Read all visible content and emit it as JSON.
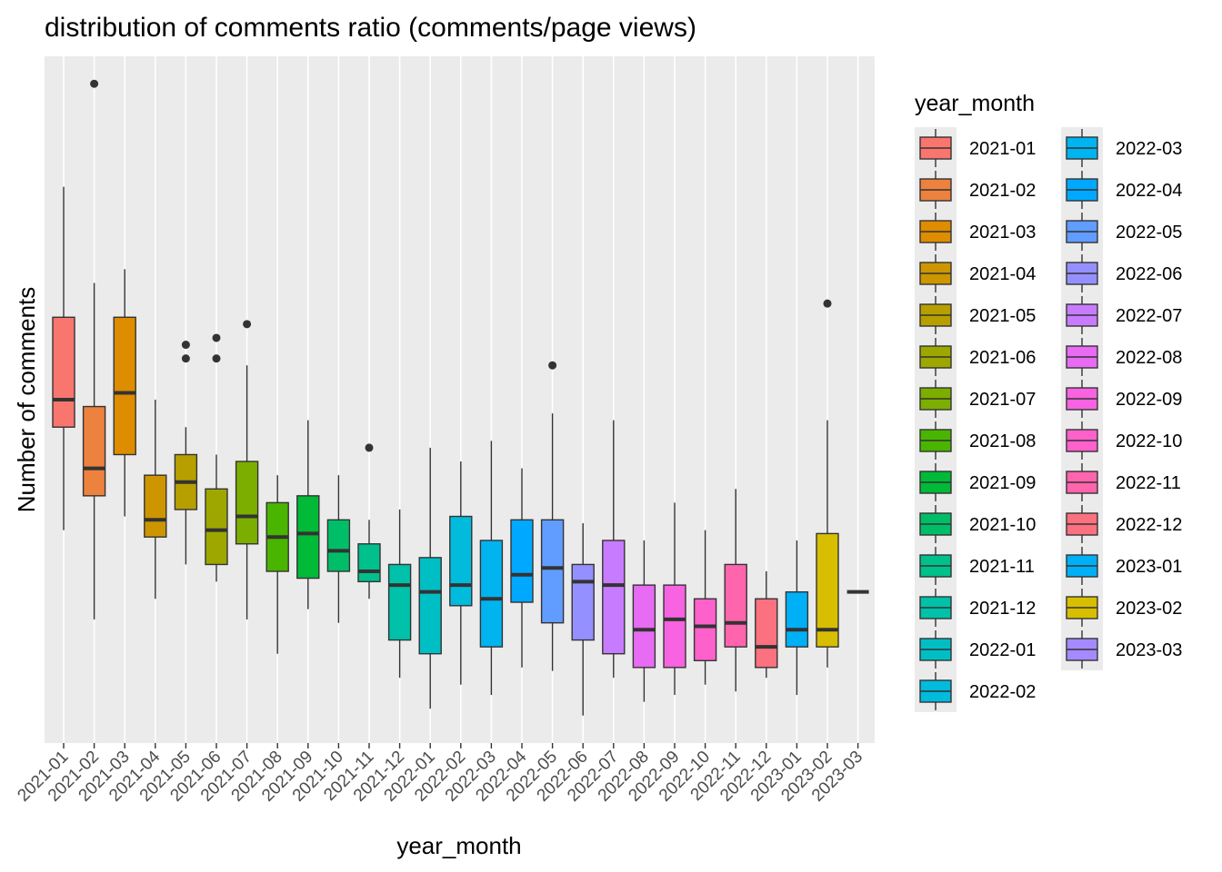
{
  "chart_data": {
    "type": "boxplot",
    "title": "distribution of comments ratio (comments/page views)",
    "xlabel": "year_month",
    "ylabel": "Number of comments",
    "y_tick_labels_shown": false,
    "ylim": [
      0,
      100
    ],
    "grid": true,
    "legend": {
      "title": "year_month",
      "placement": "right",
      "columns": 2
    },
    "categories": [
      "2021-01",
      "2021-02",
      "2021-03",
      "2021-04",
      "2021-05",
      "2021-06",
      "2021-07",
      "2021-08",
      "2021-09",
      "2021-10",
      "2021-11",
      "2021-12",
      "2022-01",
      "2022-02",
      "2022-03",
      "2022-04",
      "2022-05",
      "2022-06",
      "2022-07",
      "2022-08",
      "2022-09",
      "2022-10",
      "2022-11",
      "2022-12",
      "2023-01",
      "2023-02",
      "2023-03"
    ],
    "colors": [
      "#F8766D",
      "#ED813E",
      "#DE8C00",
      "#CD9600",
      "#B79F00",
      "#9DA700",
      "#7CAE00",
      "#49B500",
      "#00BA38",
      "#00BE67",
      "#00C08B",
      "#00C1A9",
      "#00BFC4",
      "#00BBDC",
      "#00B4F0",
      "#00A9FF",
      "#619CFF",
      "#9590FF",
      "#C77CFF",
      "#E76BF3",
      "#F763E0",
      "#FF61CC",
      "#FF65AC",
      "#FC717F",
      "#00B0F6",
      "#D8BE00",
      "#A58AFF"
    ],
    "boxes": [
      {
        "category": "2021-01",
        "whisker_low": 31,
        "q1": 46,
        "median": 50,
        "q3": 62,
        "whisker_high": 81,
        "outliers": []
      },
      {
        "category": "2021-02",
        "whisker_low": 18,
        "q1": 36,
        "median": 40,
        "q3": 49,
        "whisker_high": 67,
        "outliers": [
          96
        ]
      },
      {
        "category": "2021-03",
        "whisker_low": 33,
        "q1": 42,
        "median": 51,
        "q3": 62,
        "whisker_high": 69,
        "outliers": []
      },
      {
        "category": "2021-04",
        "whisker_low": 21,
        "q1": 30,
        "median": 32.5,
        "q3": 39,
        "whisker_high": 50,
        "outliers": []
      },
      {
        "category": "2021-05",
        "whisker_low": 26,
        "q1": 34,
        "median": 38,
        "q3": 42,
        "whisker_high": 46,
        "outliers": [
          58,
          56
        ]
      },
      {
        "category": "2021-06",
        "whisker_low": 23.5,
        "q1": 26,
        "median": 31,
        "q3": 37,
        "whisker_high": 42,
        "outliers": [
          59,
          56
        ]
      },
      {
        "category": "2021-07",
        "whisker_low": 18,
        "q1": 29,
        "median": 33,
        "q3": 41,
        "whisker_high": 55,
        "outliers": [
          61
        ]
      },
      {
        "category": "2021-08",
        "whisker_low": 13,
        "q1": 25,
        "median": 30,
        "q3": 35,
        "whisker_high": 39,
        "outliers": []
      },
      {
        "category": "2021-09",
        "whisker_low": 19.5,
        "q1": 24,
        "median": 30.5,
        "q3": 36,
        "whisker_high": 47,
        "outliers": []
      },
      {
        "category": "2021-10",
        "whisker_low": 17.5,
        "q1": 25,
        "median": 28,
        "q3": 32.5,
        "whisker_high": 39,
        "outliers": []
      },
      {
        "category": "2021-11",
        "whisker_low": 21,
        "q1": 23.5,
        "median": 25,
        "q3": 29,
        "whisker_high": 32.5,
        "outliers": [
          43
        ]
      },
      {
        "category": "2021-12",
        "whisker_low": 9.5,
        "q1": 15,
        "median": 23,
        "q3": 26,
        "whisker_high": 34,
        "outliers": []
      },
      {
        "category": "2022-01",
        "whisker_low": 5,
        "q1": 13,
        "median": 22,
        "q3": 27,
        "whisker_high": 43,
        "outliers": []
      },
      {
        "category": "2022-02",
        "whisker_low": 8.5,
        "q1": 20,
        "median": 23,
        "q3": 33,
        "whisker_high": 41,
        "outliers": []
      },
      {
        "category": "2022-03",
        "whisker_low": 7,
        "q1": 14,
        "median": 21,
        "q3": 29.5,
        "whisker_high": 44,
        "outliers": []
      },
      {
        "category": "2022-04",
        "whisker_low": 11,
        "q1": 20.5,
        "median": 24.5,
        "q3": 32.5,
        "whisker_high": 40,
        "outliers": []
      },
      {
        "category": "2022-05",
        "whisker_low": 10.5,
        "q1": 17.5,
        "median": 25.5,
        "q3": 32.5,
        "whisker_high": 48,
        "outliers": [
          55
        ]
      },
      {
        "category": "2022-06",
        "whisker_low": 4,
        "q1": 15,
        "median": 23.5,
        "q3": 26,
        "whisker_high": 32,
        "outliers": []
      },
      {
        "category": "2022-07",
        "whisker_low": 9.5,
        "q1": 13,
        "median": 23,
        "q3": 29.5,
        "whisker_high": 47,
        "outliers": []
      },
      {
        "category": "2022-08",
        "whisker_low": 6,
        "q1": 11,
        "median": 16.5,
        "q3": 23,
        "whisker_high": 29.5,
        "outliers": []
      },
      {
        "category": "2022-09",
        "whisker_low": 7,
        "q1": 11,
        "median": 18,
        "q3": 23,
        "whisker_high": 35,
        "outliers": []
      },
      {
        "category": "2022-10",
        "whisker_low": 8.5,
        "q1": 12,
        "median": 17,
        "q3": 21,
        "whisker_high": 31,
        "outliers": []
      },
      {
        "category": "2022-11",
        "whisker_low": 7.5,
        "q1": 14,
        "median": 17.5,
        "q3": 26,
        "whisker_high": 37,
        "outliers": []
      },
      {
        "category": "2022-12",
        "whisker_low": 9.5,
        "q1": 11,
        "median": 14,
        "q3": 21,
        "whisker_high": 25,
        "outliers": []
      },
      {
        "category": "2023-01",
        "whisker_low": 7,
        "q1": 14,
        "median": 16.5,
        "q3": 22,
        "whisker_high": 29.5,
        "outliers": []
      },
      {
        "category": "2023-02",
        "whisker_low": 11,
        "q1": 14,
        "median": 16.5,
        "q3": 30.5,
        "whisker_high": 47,
        "outliers": [
          64
        ]
      },
      {
        "category": "2023-03",
        "whisker_low": 22,
        "q1": 22,
        "median": 22,
        "q3": 22,
        "whisker_high": 22,
        "outliers": []
      }
    ]
  }
}
